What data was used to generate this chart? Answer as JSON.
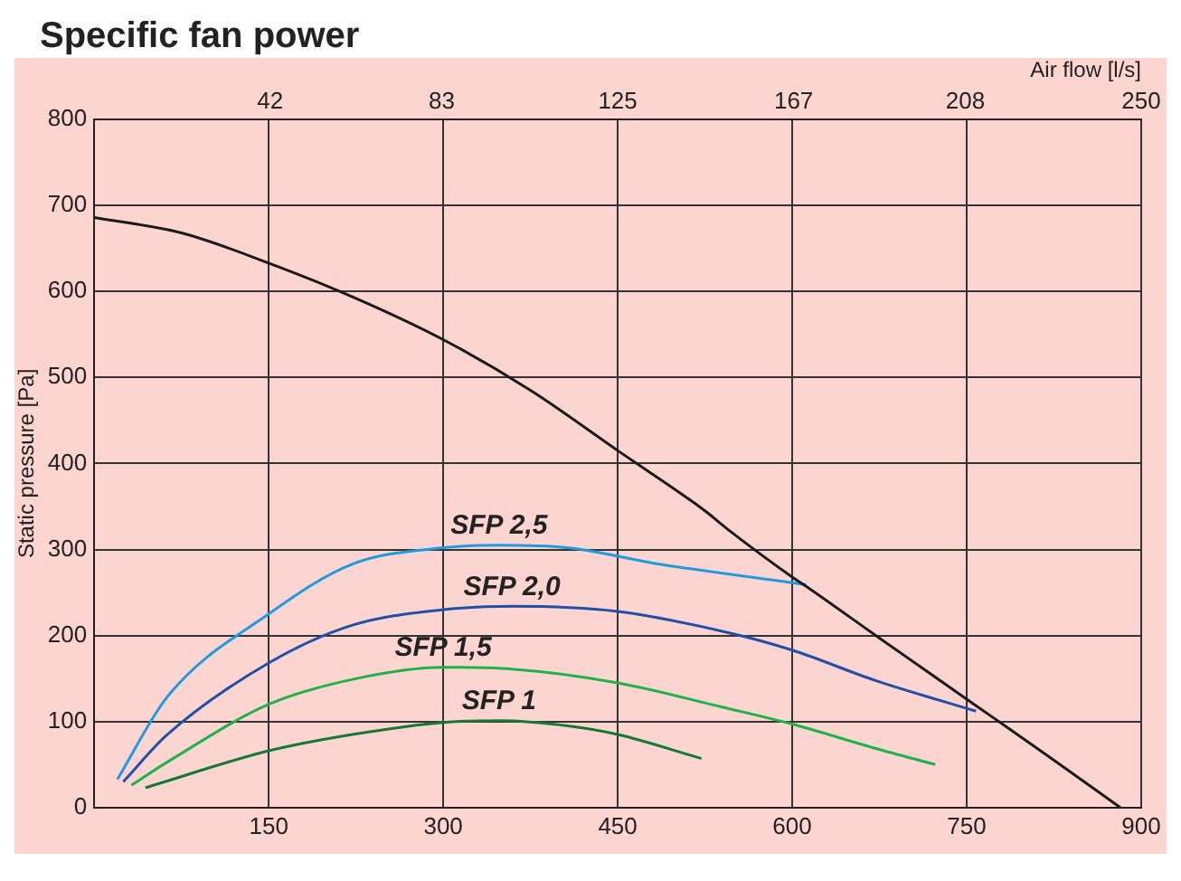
{
  "chart_data": {
    "type": "line",
    "title": "Specific fan power",
    "ylabel": "Static pressure [Pa]",
    "x2label": "Air flow [l/s]",
    "xlim": [
      0,
      900
    ],
    "xticks": [
      150,
      300,
      450,
      600,
      750,
      900
    ],
    "x2lim": [
      0,
      250
    ],
    "x2ticks": [
      42,
      83,
      125,
      167,
      208,
      250
    ],
    "ylim": [
      0,
      800
    ],
    "yticks": [
      0,
      100,
      200,
      300,
      400,
      500,
      600,
      700,
      800
    ],
    "grid": true,
    "legend": false,
    "marker": "none",
    "line_style": "solid",
    "series": [
      {
        "color": "#1a1a1a",
        "x": [
          0,
          75,
          150,
          225,
          300,
          375,
          450,
          525,
          546,
          600,
          610,
          675,
          750,
          768,
          825,
          882
        ],
        "values": [
          686,
          668,
          633,
          592,
          544,
          485,
          415,
          345,
          322,
          268,
          259,
          197,
          126,
          109,
          55,
          0
        ]
      },
      {
        "name": "SFP 2,5",
        "color": "#1e9be0",
        "x": [
          20,
          63,
          150,
          222,
          300,
          348,
          407,
          486,
          612
        ],
        "values": [
          33,
          129,
          225,
          283,
          302,
          305,
          302,
          283,
          259
        ]
      },
      {
        "name": "SFP 2,0",
        "color": "#1f4fa8",
        "x": [
          25,
          63,
          150,
          222,
          300,
          359,
          450,
          546,
          600,
          671,
          758
        ],
        "values": [
          30,
          85,
          168,
          212,
          230,
          234,
          228,
          203,
          183,
          148,
          112
        ]
      },
      {
        "name": "SFP 1,5",
        "color": "#1db34a",
        "x": [
          32,
          63,
          150,
          222,
          300,
          359,
          450,
          539,
          600,
          671,
          723
        ],
        "values": [
          26,
          53,
          120,
          149,
          163,
          161,
          145,
          117,
          97,
          69,
          50
        ]
      },
      {
        "name": "SFP 1",
        "color": "#137a36",
        "x": [
          44,
          150,
          222,
          300,
          348,
          407,
          450,
          522
        ],
        "values": [
          23,
          66,
          85,
          99,
          101,
          95,
          85,
          57
        ]
      }
    ]
  }
}
